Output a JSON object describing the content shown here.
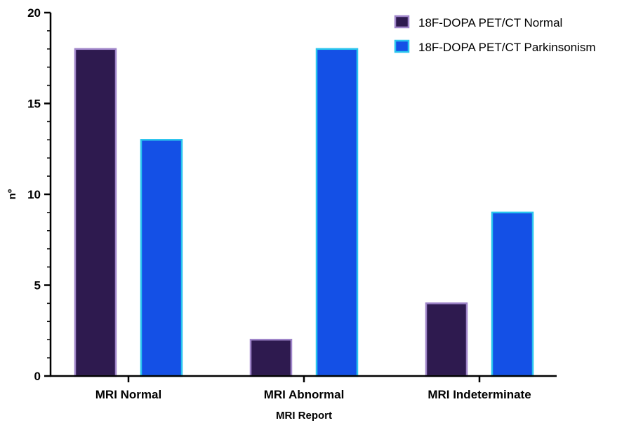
{
  "chart_data": {
    "type": "bar",
    "categories": [
      "MRI Normal",
      "MRI Abnormal",
      "MRI Indeterminate"
    ],
    "series": [
      {
        "name": "18F-DOPA PET/CT Normal",
        "values": [
          18,
          2,
          4
        ],
        "fill": "#2e1a4f",
        "stroke": "#9f85c9"
      },
      {
        "name": "18F-DOPA PET/CT Parkinsonism",
        "values": [
          13,
          18,
          9
        ],
        "fill": "#1450e6",
        "stroke": "#29c4ee"
      }
    ],
    "xlabel": "MRI Report",
    "ylabel": "nº",
    "ylim": [
      0,
      20
    ],
    "yticks": [
      0,
      5,
      10,
      15,
      20
    ],
    "legend": "top-right",
    "grid": false
  }
}
